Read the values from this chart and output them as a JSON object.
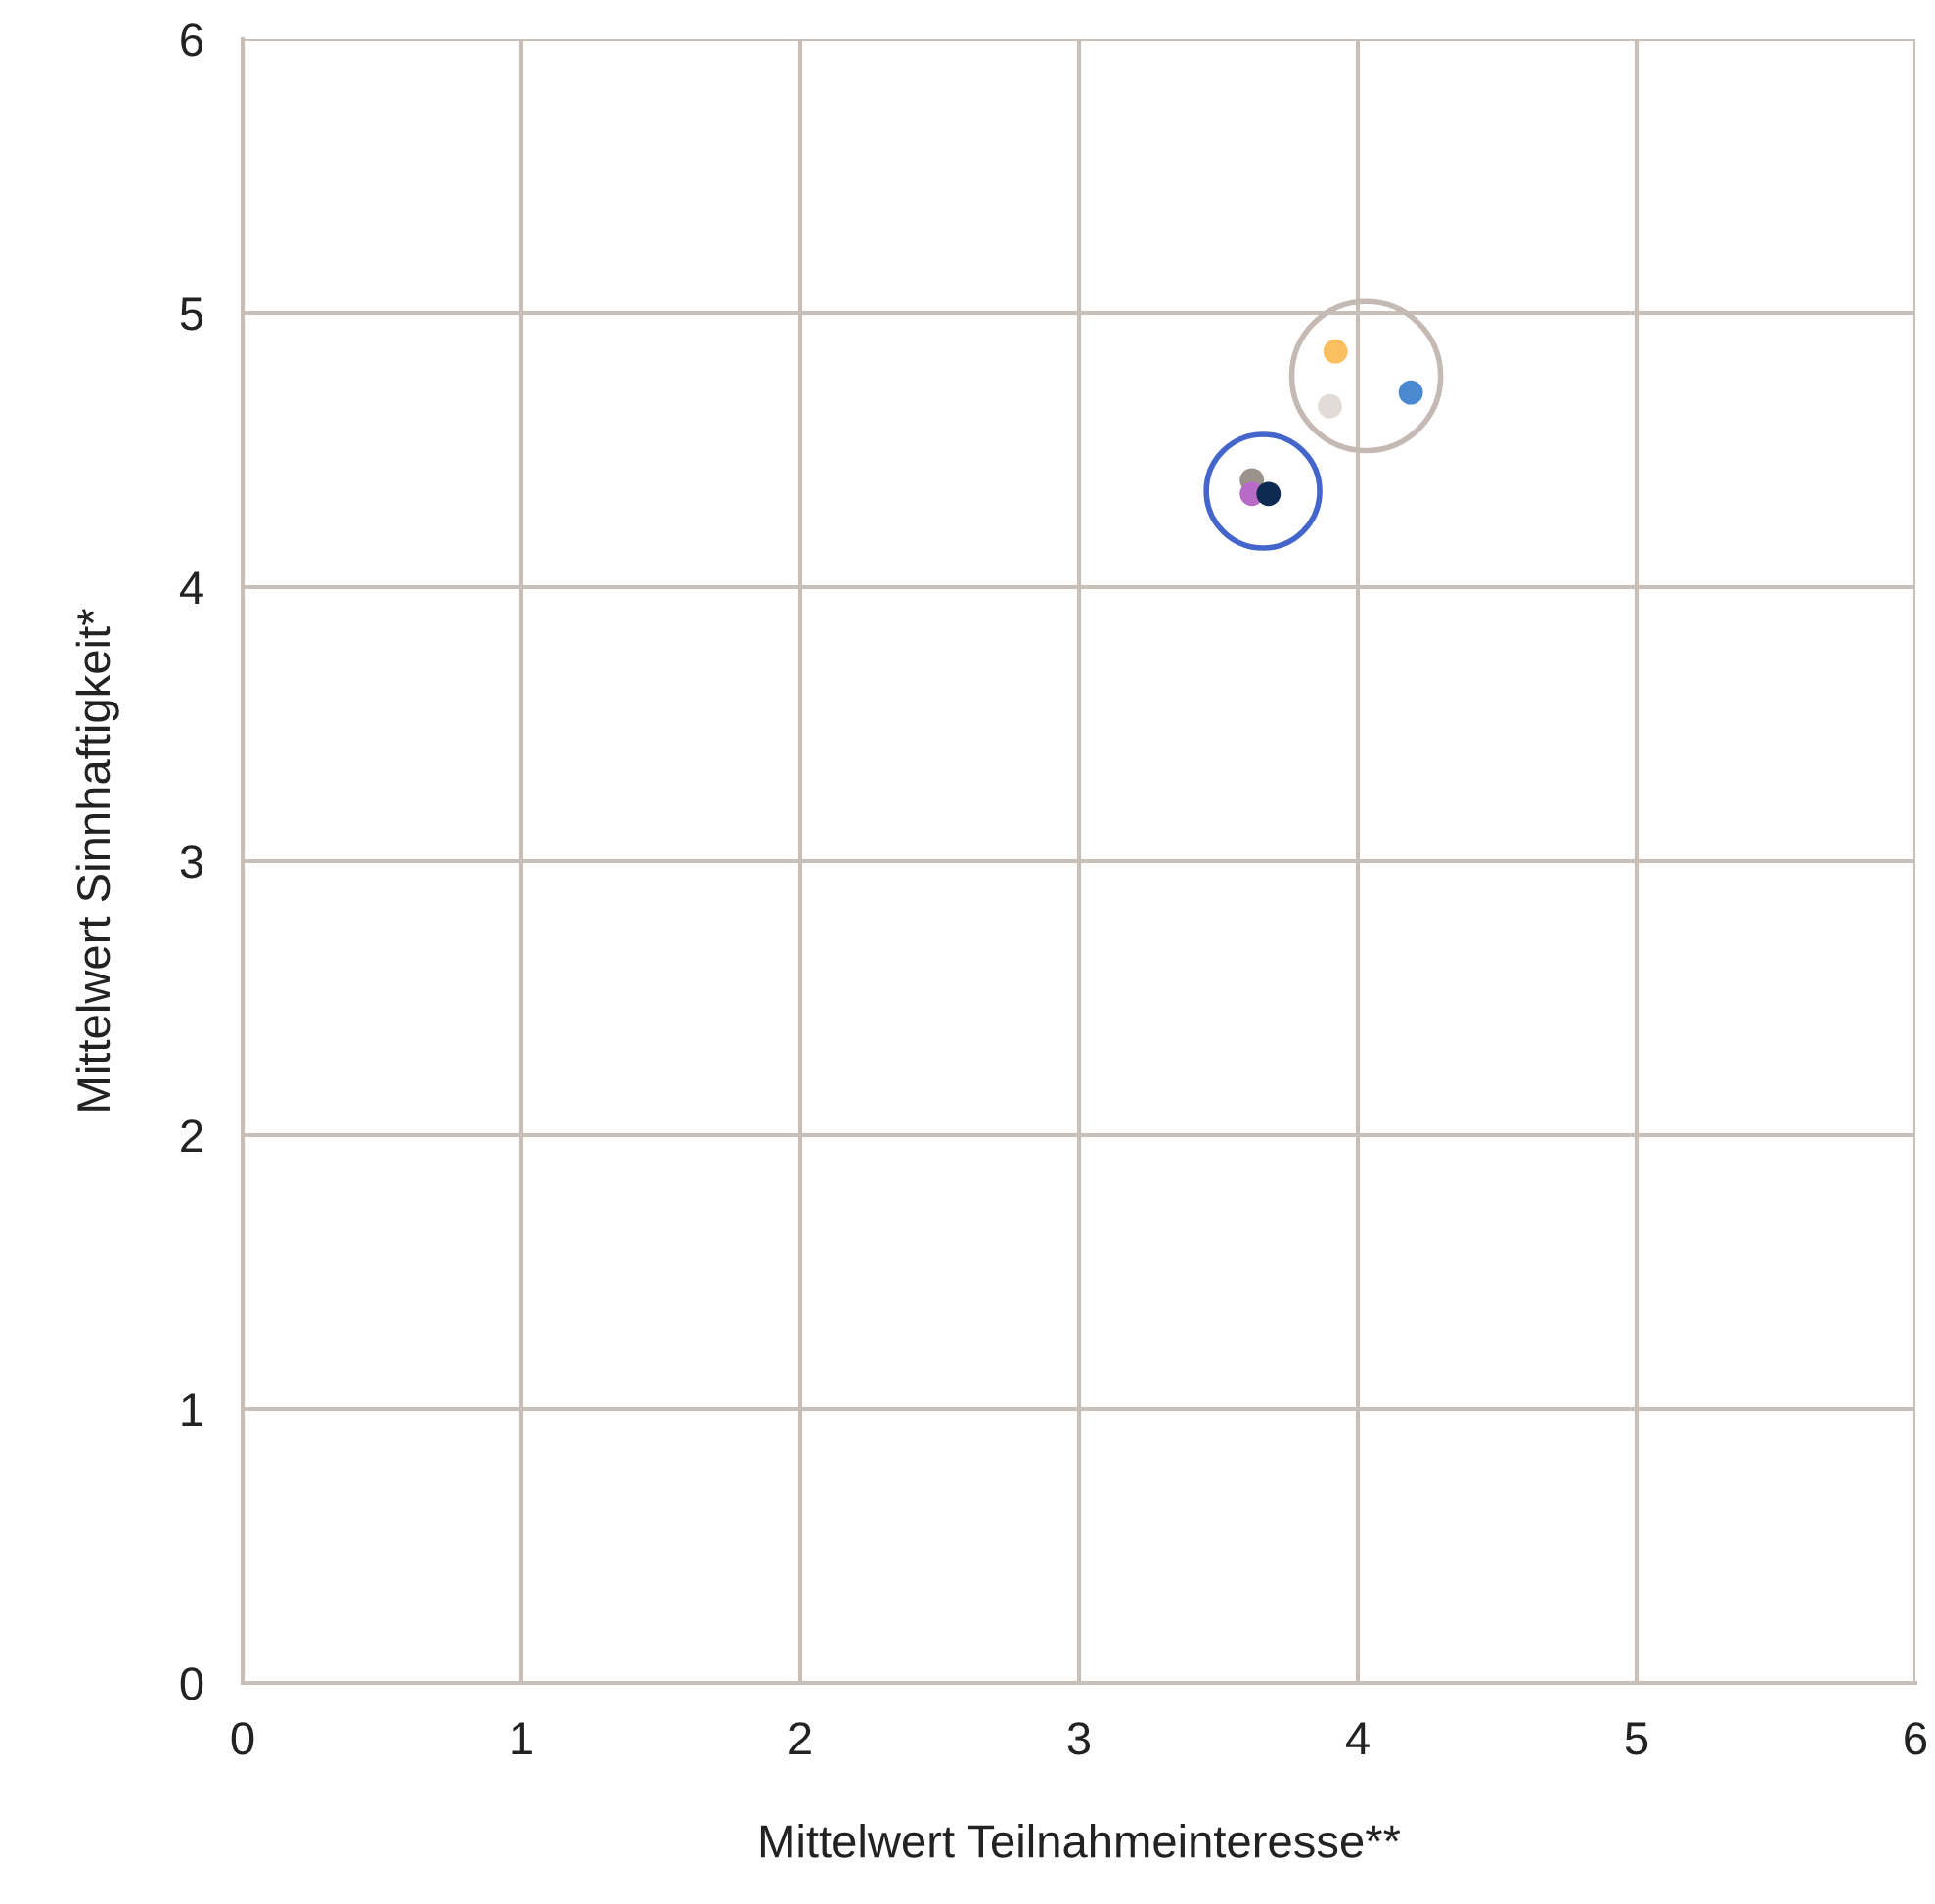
{
  "chart_data": {
    "type": "scatter",
    "xlabel": "Mittelwert Teilnahmeinteresse**",
    "ylabel": "Mittelwert Sinnhaftigkeit*",
    "xlim": [
      0,
      6
    ],
    "ylim": [
      0,
      6
    ],
    "xticks": [
      0,
      1,
      2,
      3,
      4,
      5,
      6
    ],
    "yticks": [
      0,
      1,
      2,
      3,
      4,
      5,
      6
    ],
    "grid": true,
    "marker": "circle",
    "series": [
      {
        "x": [
          3.92,
          3.9,
          4.19,
          3.62,
          3.62,
          3.68
        ],
        "values": [
          4.86,
          4.66,
          4.71,
          4.39,
          4.34,
          4.34
        ],
        "colors": [
          "#fbbf5f",
          "#e2dcd8",
          "#4a88cf",
          "#9b928c",
          "#b86bc6",
          "#0d2b52"
        ]
      },
      {
        "type": "bubble",
        "x": [
          4.03,
          3.66
        ],
        "values": [
          4.77,
          4.35
        ],
        "sizes": [
          1,
          0.58
        ],
        "colors": [
          "#c4bab3",
          "#4466cc"
        ]
      }
    ]
  }
}
